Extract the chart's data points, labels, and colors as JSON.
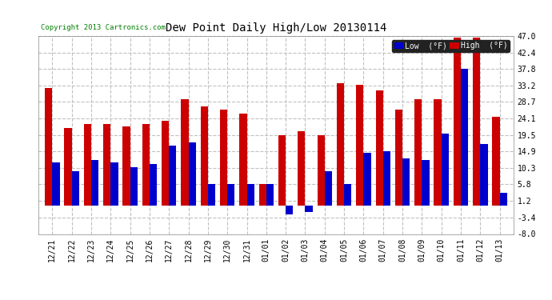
{
  "title": "Dew Point Daily High/Low 20130114",
  "copyright": "Copyright 2013 Cartronics.com",
  "categories": [
    "12/21",
    "12/22",
    "12/23",
    "12/24",
    "12/25",
    "12/26",
    "12/27",
    "12/28",
    "12/29",
    "12/30",
    "12/31",
    "01/01",
    "01/02",
    "01/03",
    "01/04",
    "01/05",
    "01/06",
    "01/07",
    "01/08",
    "01/09",
    "01/10",
    "01/11",
    "01/12",
    "01/13"
  ],
  "low_values": [
    12.0,
    9.5,
    12.5,
    12.0,
    10.5,
    11.5,
    16.5,
    17.5,
    6.0,
    6.0,
    5.8,
    5.8,
    -2.5,
    -1.8,
    9.5,
    6.0,
    14.5,
    15.0,
    13.0,
    12.5,
    20.0,
    37.8,
    17.0,
    3.5
  ],
  "high_values": [
    32.5,
    21.5,
    22.5,
    22.5,
    22.0,
    22.5,
    23.5,
    29.5,
    27.5,
    26.5,
    25.5,
    5.8,
    19.5,
    20.5,
    19.5,
    34.0,
    33.5,
    32.0,
    26.5,
    29.5,
    29.5,
    46.5,
    46.5,
    24.5
  ],
  "low_color": "#0000cc",
  "high_color": "#cc0000",
  "background_color": "#ffffff",
  "grid_color": "#c0c0c0",
  "ylim": [
    -8.0,
    47.0
  ],
  "yticks": [
    -8.0,
    -3.4,
    1.2,
    5.8,
    10.3,
    14.9,
    19.5,
    24.1,
    28.7,
    33.2,
    37.8,
    42.4,
    47.0
  ],
  "bar_width": 0.38,
  "legend_low_label": "Low  (°F)",
  "legend_high_label": "High  (°F)"
}
